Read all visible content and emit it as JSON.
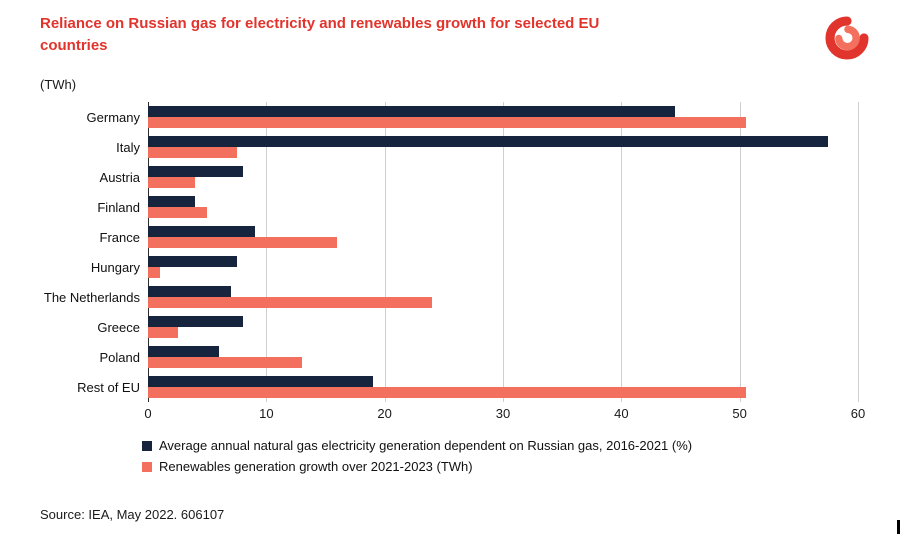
{
  "title": "Reliance on Russian gas for electricity and renewables growth for selected EU countries",
  "unit_label": "(TWh)",
  "source": "Source: IEA, May 2022. 606107",
  "logo": "iea-logo",
  "colors": {
    "title_red": "#e0342c",
    "navy": "#16243d",
    "coral": "#f4705e",
    "gridline": "#cfcfcf"
  },
  "chart_data": {
    "type": "bar",
    "orientation": "horizontal",
    "title": "Reliance on Russian gas for electricity and renewables growth for selected EU countries",
    "xlabel": "TWh",
    "ylabel": "",
    "xlim": [
      0,
      60
    ],
    "xticks": [
      0,
      10,
      20,
      30,
      40,
      50,
      60
    ],
    "grid": true,
    "legend_position": "bottom",
    "categories": [
      "Germany",
      "Italy",
      "Austria",
      "Finland",
      "France",
      "Hungary",
      "The Netherlands",
      "Greece",
      "Poland",
      "Rest of EU"
    ],
    "series": [
      {
        "name": "Average annual natural gas electricity generation dependent on Russian gas, 2016-2021 (%)",
        "color": "#16243d",
        "values": [
          44.5,
          57.5,
          8,
          4,
          9,
          7.5,
          7,
          8,
          6,
          19
        ]
      },
      {
        "name": "Renewables generation growth over 2021-2023 (TWh)",
        "color": "#f4705e",
        "values": [
          50.5,
          7.5,
          4,
          5,
          16,
          1,
          24,
          2.5,
          13,
          50.5
        ]
      }
    ]
  }
}
